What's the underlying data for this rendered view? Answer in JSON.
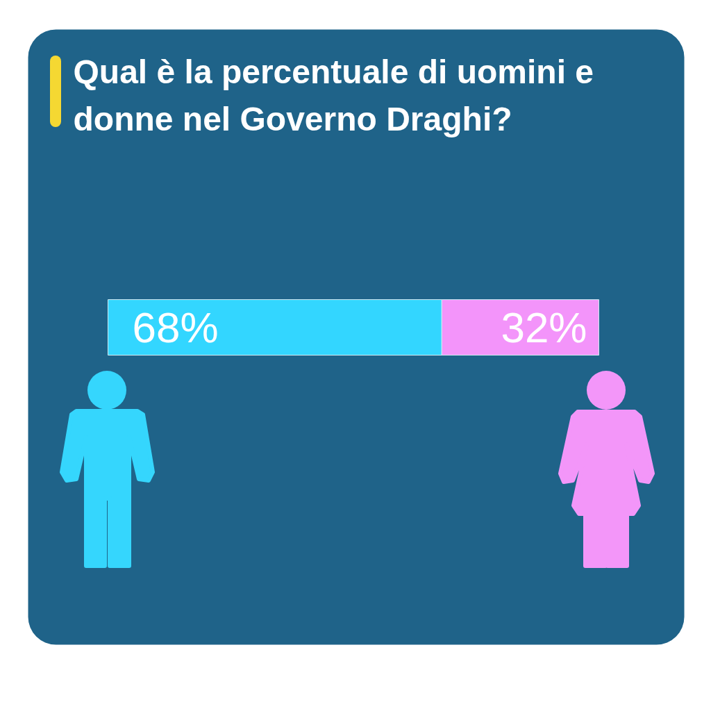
{
  "chart_data": {
    "type": "bar",
    "orientation": "horizontal",
    "stacked": true,
    "title": "Qual è la percentuale di uomini e donne nel Governo Draghi?",
    "categories": [
      null
    ],
    "series": [
      {
        "color": "#33d6ff",
        "values": [
          68
        ],
        "value_labels": [
          "68%"
        ]
      },
      {
        "color": "#f394fa",
        "values": [
          32
        ],
        "value_labels": [
          "32%"
        ]
      }
    ]
  }
}
